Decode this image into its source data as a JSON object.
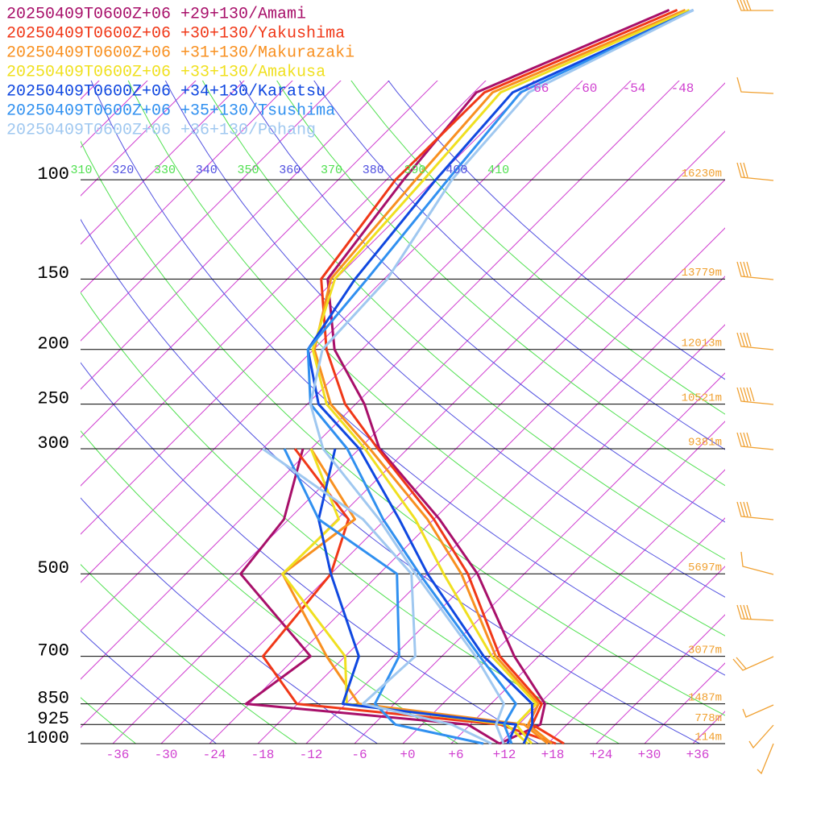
{
  "chart_data": {
    "type": "skew-t",
    "log_scale": true,
    "pressure": [
      1000,
      925,
      850,
      700,
      500,
      400,
      300,
      250,
      200,
      150,
      100,
      70,
      50
    ],
    "ylim": [
      1000,
      48
    ],
    "xlim": [
      -40,
      40
    ],
    "yticks": [
      100,
      150,
      200,
      250,
      300,
      500,
      700,
      850,
      925,
      1000
    ],
    "height_labels": [
      "16230m",
      "13779m",
      "12013m",
      "10521m",
      "9381m",
      "5697m",
      "3077m",
      "1487m",
      "778m",
      "114m"
    ],
    "xticks": [
      -36,
      -30,
      -24,
      -18,
      -12,
      -6,
      {
        "value": 0,
        "label": "+0"
      },
      {
        "value": 6,
        "label": "+6"
      },
      {
        "value": 12,
        "label": "+12"
      },
      {
        "value": 18,
        "label": "+18"
      },
      {
        "value": 24,
        "label": "+24"
      },
      {
        "value": 30,
        "label": "+30"
      },
      {
        "value": 36,
        "label": "+36"
      }
    ],
    "isotherm_labels": [
      -66,
      -60,
      -54,
      -48
    ],
    "isotherm_color": "#d040d0",
    "isentropes": [
      310,
      320,
      330,
      340,
      350,
      360,
      370,
      380,
      390,
      400,
      410
    ],
    "isentrope_colors": [
      "#5050e0",
      "#50e050"
    ],
    "height_color": "#f0a030",
    "series": [
      {
        "name": "20250409T0600Z+06 +29+130/Amami",
        "color": "#a8106a",
        "values": [
          12,
          14.7,
          12.7,
          3.0,
          -11.8,
          -23.3,
          -39.5,
          -46.9,
          -57.4,
          -67,
          -69.9,
          -71.7,
          -58
        ],
        "dewpoint": [
          12,
          5.7,
          -24.4,
          -22.3,
          -41.2,
          -42.6,
          -49,
          null,
          null,
          null,
          null,
          null,
          null
        ]
      },
      {
        "name": "20250409T0600Z+06 +30+130/Yakushima",
        "color": "#f03818",
        "values": [
          20,
          13.7,
          12.3,
          1.2,
          -13,
          -24,
          -39.7,
          -49.3,
          -58.4,
          -67.8,
          -70.9,
          -70.7,
          -57
        ],
        "dewpoint": [
          19,
          9.7,
          -18.1,
          -28.2,
          -30,
          -34.6,
          -50,
          null,
          null,
          null,
          null,
          null,
          null
        ]
      },
      {
        "name": "20250409T0600Z+06 +31+130/Makurazaki",
        "color": "#f89020",
        "values": [
          18.5,
          13.2,
          11.9,
          0.7,
          -13.8,
          -24.8,
          -40.7,
          -51.1,
          -59.9,
          -66.6,
          -68.4,
          -69.7,
          -56
        ],
        "dewpoint": [
          18,
          12.7,
          -10.4,
          -20.3,
          -36,
          -33.8,
          -48,
          null,
          null,
          null,
          null,
          null,
          null
        ]
      },
      {
        "name": "20250409T0600Z+06 +33+130/Amakusa",
        "color": "#f0e020",
        "values": [
          16,
          11.7,
          11.6,
          0.2,
          -16,
          -26.3,
          -41.3,
          -51.6,
          -60.1,
          -66.1,
          -67.4,
          -68.7,
          -55.5
        ],
        "dewpoint": [
          15.5,
          10.5,
          -11.9,
          -18,
          -36,
          -35.8,
          -48,
          null,
          null,
          null,
          null,
          null,
          null
        ]
      },
      {
        "name": "20250409T0600Z+06 +34+130/Karatsu",
        "color": "#1048e0",
        "values": [
          15,
          13.7,
          11.1,
          -0.8,
          -18,
          -28.3,
          -42,
          -52.6,
          -60.7,
          -63.6,
          -65.9,
          -67.2,
          -55
        ],
        "dewpoint": [
          13,
          11.7,
          -12.4,
          -16.3,
          -30,
          -38.3,
          -45,
          null,
          null,
          null,
          null,
          null,
          null
        ]
      },
      {
        "name": "20250409T0600Z+06 +35+130/Tsushima",
        "color": "#3090f0",
        "values": [
          13.5,
          10.2,
          9.1,
          -1.3,
          -19,
          -30.3,
          -43.5,
          -53.6,
          -60.7,
          -62.1,
          -64.4,
          -66.2,
          -55
        ],
        "dewpoint": [
          10,
          -3.3,
          -8.4,
          -11.3,
          -21.8,
          -38.3,
          -51.3,
          null,
          null,
          null,
          null,
          null,
          null
        ]
      },
      {
        "name": "20250409T0600Z+06 +36+130/Pohang",
        "color": "#a0c8f0",
        "values": [
          12.5,
          9.2,
          7.6,
          -1.8,
          -19.5,
          -30.8,
          -46.5,
          -53.6,
          -58.9,
          -59.6,
          -63.9,
          -65.2,
          -55
        ],
        "dewpoint": [
          11,
          3.7,
          -9.9,
          -9.3,
          -20,
          -32.8,
          -54,
          null,
          null,
          null,
          null,
          null,
          null
        ]
      }
    ]
  }
}
